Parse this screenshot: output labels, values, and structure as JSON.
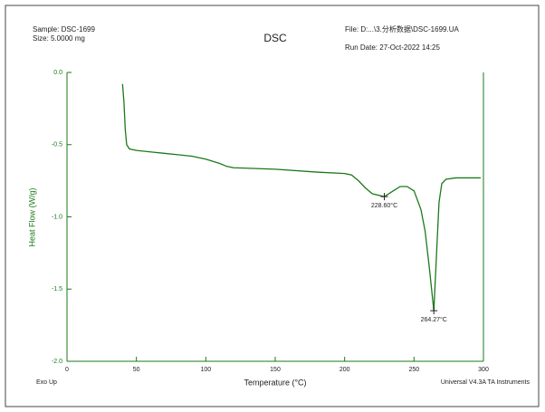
{
  "chart_data": {
    "type": "line",
    "title": "DSC",
    "sample": "Sample: DSC-1699",
    "size": "Size:  5.0000 mg",
    "file": "File: D:...\\3.分析数据\\DSC-1699.UA",
    "run_date": "Run Date: 27-Oct-2022 14:25",
    "x_label": "Temperature (°C)",
    "y_label": "Heat Flow (W/g)",
    "footer_left": "Exo Up",
    "footer_right": "Universal V4.3A TA Instruments",
    "x": [
      40,
      41,
      42,
      43,
      45,
      50,
      60,
      70,
      80,
      90,
      100,
      110,
      115,
      120,
      150,
      180,
      200,
      205,
      210,
      215,
      220,
      228.6,
      235,
      240,
      245,
      250,
      255,
      258,
      261,
      264.27,
      266,
      268,
      270,
      273,
      280,
      290,
      298
    ],
    "series": [
      {
        "name": "Heat Flow",
        "color": "#1a7a1a",
        "values": [
          -0.08,
          -0.2,
          -0.4,
          -0.5,
          -0.53,
          -0.54,
          -0.55,
          -0.56,
          -0.57,
          -0.58,
          -0.6,
          -0.63,
          -0.65,
          -0.66,
          -0.67,
          -0.69,
          -0.7,
          -0.71,
          -0.75,
          -0.8,
          -0.84,
          -0.86,
          -0.82,
          -0.79,
          -0.79,
          -0.82,
          -0.95,
          -1.1,
          -1.35,
          -1.65,
          -1.3,
          -0.9,
          -0.77,
          -0.74,
          -0.73,
          -0.73,
          -0.73
        ]
      }
    ],
    "annotations": [
      {
        "label": "228.60°C",
        "x": 228.6,
        "y": -0.86
      },
      {
        "label": "264.27°C",
        "x": 264.27,
        "y": -1.65
      }
    ],
    "xlim": [
      0,
      300
    ],
    "xticks": [
      0,
      50,
      100,
      150,
      200,
      250,
      300
    ],
    "ylim": [
      -2,
      0
    ],
    "yticks": [
      {
        "value": 0,
        "label": "0.0"
      },
      -0.5,
      {
        "value": -1,
        "label": "-1.0"
      },
      -1.5,
      {
        "value": -2,
        "label": "-2.0"
      }
    ],
    "axis_color": "#1a7a1a"
  }
}
